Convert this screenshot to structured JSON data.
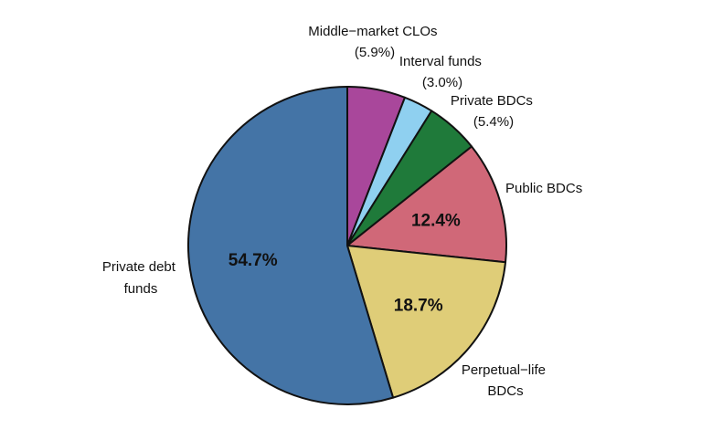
{
  "chart_data": {
    "type": "pie",
    "title": "",
    "start": "12-o'clock",
    "direction": "clockwise",
    "slices": [
      {
        "name": "Middle-market CLOs",
        "value": 5.9,
        "display": "(5.9%)",
        "color": "#a9479b",
        "label_position": "outside"
      },
      {
        "name": "Interval funds",
        "value": 3.0,
        "display": "(3.0%)",
        "color": "#8fd0f0",
        "label_position": "outside"
      },
      {
        "name": "Private BDCs",
        "value": 5.4,
        "display": "(5.4%)",
        "color": "#1f7a3a",
        "label_position": "outside"
      },
      {
        "name": "Public BDCs",
        "value": 12.4,
        "display": "12.4%",
        "color": "#d06878",
        "label_position": "inside"
      },
      {
        "name": "Perpetual-life BDCs",
        "value": 18.7,
        "display": "18.7%",
        "color": "#dfcd78",
        "label_position": "inside"
      },
      {
        "name": "Private debt funds",
        "value": 54.7,
        "display": "54.7%",
        "color": "#4474a6",
        "label_position": "inside"
      }
    ],
    "labels": {
      "mm_clo": {
        "lines": [
          "Middle−market CLOs",
          "(5.9%)"
        ]
      },
      "interval": {
        "lines": [
          "Interval funds",
          "(3.0%)"
        ]
      },
      "private_bdc": {
        "lines": [
          "Private BDCs",
          "(5.4%)"
        ]
      },
      "public_bdc": {
        "lines": [
          "Public BDCs"
        ]
      },
      "perpetual": {
        "lines": [
          "Perpetual−life",
          "BDCs"
        ]
      },
      "private_debt": {
        "lines": [
          "Private debt",
          "funds"
        ]
      }
    }
  }
}
